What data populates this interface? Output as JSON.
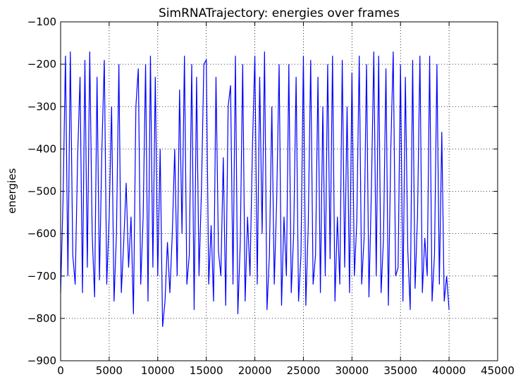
{
  "chart_data": {
    "type": "line",
    "title": "SimRNATrajectory: energies over frames",
    "y_label": "energies",
    "color": "#0000ff",
    "grid": true,
    "xlim": [
      0,
      45000
    ],
    "ylim": [
      -900,
      -100
    ],
    "xticks": [
      0,
      5000,
      10000,
      15000,
      20000,
      25000,
      30000,
      35000,
      40000,
      45000
    ],
    "yticks": [
      {
        "value": -900,
        "label": "−900"
      },
      {
        "value": -800,
        "label": "−800"
      },
      {
        "value": -700,
        "label": "−700"
      },
      {
        "value": -600,
        "label": "−600"
      },
      {
        "value": -500,
        "label": "−500"
      },
      {
        "value": -400,
        "label": "−400"
      },
      {
        "value": -300,
        "label": "−300"
      },
      {
        "value": -200,
        "label": "−200"
      },
      {
        "value": -100,
        "label": "−100"
      }
    ],
    "x": [
      0,
      250,
      500,
      750,
      1000,
      1250,
      1500,
      1750,
      2000,
      2250,
      2500,
      2750,
      3000,
      3250,
      3500,
      3750,
      4000,
      4250,
      4500,
      4750,
      5000,
      5250,
      5500,
      5750,
      6000,
      6250,
      6500,
      6750,
      7000,
      7250,
      7500,
      7750,
      8000,
      8250,
      8500,
      8750,
      9000,
      9250,
      9500,
      9750,
      10000,
      10250,
      10500,
      10750,
      11000,
      11250,
      11500,
      11750,
      12000,
      12250,
      12500,
      12750,
      13000,
      13250,
      13500,
      13750,
      14000,
      14250,
      14500,
      14750,
      15000,
      15250,
      15500,
      15750,
      16000,
      16250,
      16500,
      16750,
      17000,
      17250,
      17500,
      17750,
      18000,
      18250,
      18500,
      18750,
      19000,
      19250,
      19500,
      19750,
      20000,
      20250,
      20500,
      20750,
      21000,
      21250,
      21500,
      21750,
      22000,
      22250,
      22500,
      22750,
      23000,
      23250,
      23500,
      23750,
      24000,
      24250,
      24500,
      24750,
      25000,
      25250,
      25500,
      25750,
      26000,
      26250,
      26500,
      26750,
      27000,
      27250,
      27500,
      27750,
      28000,
      28250,
      28500,
      28750,
      29000,
      29250,
      29500,
      29750,
      30000,
      30250,
      30500,
      30750,
      31000,
      31250,
      31500,
      31750,
      32000,
      32250,
      32500,
      32750,
      33000,
      33250,
      33500,
      33750,
      34000,
      34250,
      34500,
      34750,
      35000,
      35250,
      35500,
      35750,
      36000,
      36250,
      36500,
      36750,
      37000,
      37250,
      37500,
      37750,
      38000,
      38250,
      38500,
      38750,
      39000,
      39250,
      39500,
      39750,
      40000
    ],
    "values": [
      -740,
      -520,
      -180,
      -700,
      -170,
      -650,
      -720,
      -420,
      -230,
      -740,
      -190,
      -680,
      -170,
      -600,
      -750,
      -230,
      -710,
      -400,
      -190,
      -720,
      -560,
      -300,
      -760,
      -600,
      -200,
      -740,
      -620,
      -480,
      -680,
      -560,
      -790,
      -300,
      -210,
      -720,
      -560,
      -200,
      -760,
      -180,
      -680,
      -230,
      -700,
      -400,
      -820,
      -760,
      -620,
      -740,
      -600,
      -400,
      -700,
      -260,
      -600,
      -180,
      -720,
      -650,
      -200,
      -780,
      -230,
      -700,
      -500,
      -200,
      -190,
      -720,
      -580,
      -760,
      -230,
      -640,
      -700,
      -420,
      -770,
      -300,
      -250,
      -720,
      -180,
      -790,
      -620,
      -200,
      -760,
      -560,
      -700,
      -400,
      -180,
      -720,
      -230,
      -600,
      -170,
      -780,
      -650,
      -300,
      -720,
      -520,
      -200,
      -770,
      -560,
      -700,
      -200,
      -740,
      -600,
      -230,
      -760,
      -650,
      -180,
      -770,
      -580,
      -190,
      -720,
      -650,
      -230,
      -740,
      -300,
      -700,
      -200,
      -660,
      -180,
      -760,
      -560,
      -720,
      -190,
      -680,
      -300,
      -740,
      -220,
      -700,
      -570,
      -180,
      -720,
      -610,
      -200,
      -750,
      -500,
      -170,
      -700,
      -180,
      -740,
      -610,
      -210,
      -770,
      -400,
      -170,
      -700,
      -680,
      -200,
      -760,
      -230,
      -640,
      -780,
      -190,
      -730,
      -560,
      -180,
      -740,
      -610,
      -700,
      -180,
      -760,
      -650,
      -200,
      -720,
      -360,
      -760,
      -700,
      -780
    ]
  }
}
